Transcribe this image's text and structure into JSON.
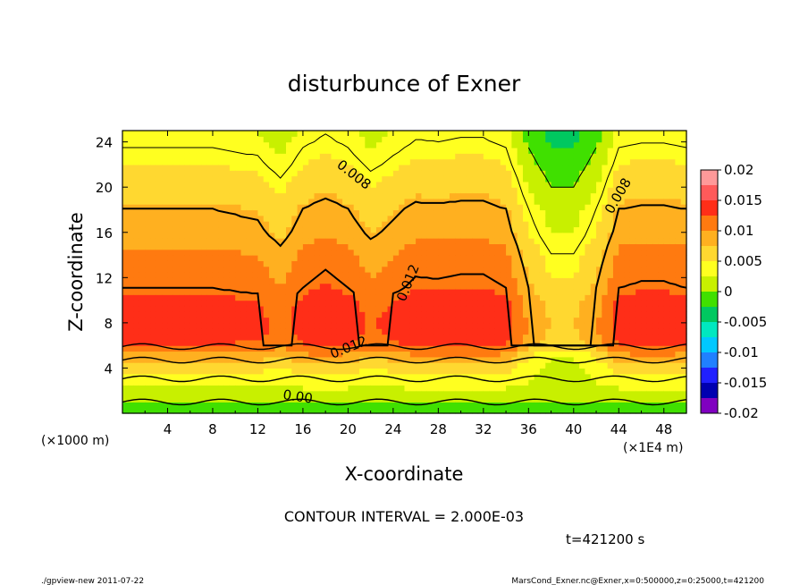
{
  "chart_data": {
    "type": "heatmap",
    "title": "disturbunce of Exner",
    "xlabel": "X-coordinate",
    "ylabel": "Z-coordinate",
    "x_unit_left": "(×1000 m)",
    "x_unit_right": "(×1E4 m)",
    "xlim": [
      0,
      50
    ],
    "ylim": [
      0,
      25
    ],
    "x_ticks": [
      "4",
      "8",
      "12",
      "16",
      "20",
      "24",
      "28",
      "32",
      "36",
      "40",
      "44",
      "48"
    ],
    "y_ticks": [
      "4",
      "8",
      "12",
      "16",
      "20",
      "24"
    ],
    "colorbar": {
      "range": [
        -0.02,
        0.02
      ],
      "labels": [
        "0.02",
        "0.015",
        "0.01",
        "0.005",
        "0",
        "-0.005",
        "-0.01",
        "-0.015",
        "-0.02"
      ],
      "colors": [
        "#ff9999",
        "#ff5a5a",
        "#ff2e18",
        "#ff7a10",
        "#ffb020",
        "#ffd830",
        "#ffff20",
        "#c8f000",
        "#40e000",
        "#00c860",
        "#00e8c0",
        "#00c8ff",
        "#2080ff",
        "#2020ff",
        "#0000b0",
        "#8000c0"
      ]
    },
    "contour_labels": [
      "0.008",
      "0.008",
      "0.012",
      "0.012",
      "0.00"
    ],
    "contour_interval_text": "CONTOUR INTERVAL = 2.000E-03",
    "time_text": "t=421200 s",
    "field_profile": {
      "z": [
        0,
        1,
        2,
        3,
        4,
        5,
        6,
        7,
        8,
        9,
        10,
        11,
        12,
        13,
        14,
        15,
        16,
        17,
        18,
        19,
        20,
        21,
        22,
        23,
        24,
        25
      ],
      "value": [
        -0.002,
        0.0,
        0.002,
        0.004,
        0.006,
        0.009,
        0.0125,
        0.0135,
        0.0138,
        0.0134,
        0.013,
        0.012,
        0.0115,
        0.011,
        0.0105,
        0.0098,
        0.009,
        0.0085,
        0.008,
        0.0072,
        0.0065,
        0.0058,
        0.005,
        0.0043,
        0.0036,
        0.003
      ]
    },
    "modulation": {
      "x": [
        0,
        4,
        8,
        12,
        14,
        16,
        18,
        20,
        22,
        24,
        26,
        28,
        30,
        32,
        34,
        36,
        38,
        40,
        42,
        44,
        46,
        48,
        50
      ],
      "dv": [
        0.0,
        0.0,
        0.0,
        -0.0005,
        -0.002,
        0.0,
        0.0008,
        0.0,
        -0.0015,
        -0.0005,
        0.0005,
        0.0004,
        0.0006,
        0.0006,
        0.0,
        -0.004,
        -0.0065,
        -0.0065,
        -0.004,
        0.0,
        0.0003,
        0.0003,
        0.0
      ]
    }
  },
  "footer": {
    "left": "./gpview-new 2011-07-22",
    "right": "MarsCond_Exner.nc@Exner,x=0:500000,z=0:25000,t=421200"
  }
}
